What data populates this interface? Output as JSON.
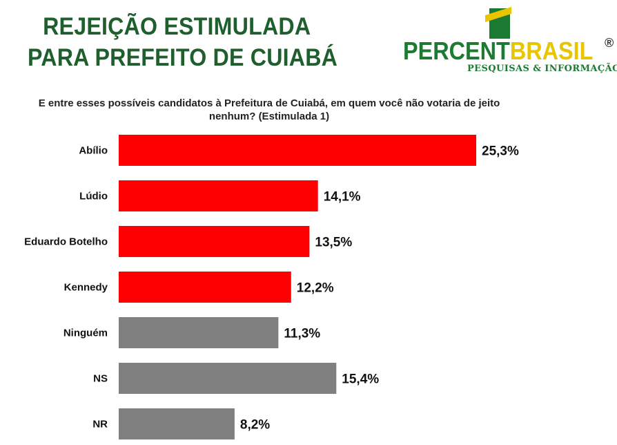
{
  "header": {
    "title_line1": "REJEIÇÃO ESTIMULADA",
    "title_line2": "PARA PREFEITO DE CUIABÁ"
  },
  "logo": {
    "name_part1": "PERCENT",
    "name_part2": "BRASIL",
    "registered_mark": "®",
    "tagline": "PESQUISAS & INFORMAÇÃO",
    "flag_green": "#1d7a33",
    "flag_yellow": "#e8c500"
  },
  "question": "E entre esses possíveis candidatos à Prefeitura de Cuiabá, em quem você não votaria de jeito nenhum? (Estimulada 1)",
  "chart_data": {
    "type": "bar",
    "orientation": "horizontal",
    "categories": [
      "Abílio",
      "Lúdio",
      "Eduardo Botelho",
      "Kennedy",
      "Ninguém",
      "NS",
      "NR"
    ],
    "values": [
      25.3,
      14.1,
      13.5,
      12.2,
      11.3,
      15.4,
      8.2
    ],
    "value_labels": [
      "25,3%",
      "14,1%",
      "13,5%",
      "12,2%",
      "11,3%",
      "15,4%",
      "8,2%"
    ],
    "colors": [
      "#ff0000",
      "#ff0000",
      "#ff0000",
      "#ff0000",
      "#808080",
      "#808080",
      "#808080"
    ],
    "unit": "%",
    "xlim": [
      0,
      25.3
    ],
    "grid": false,
    "legend": "none"
  }
}
